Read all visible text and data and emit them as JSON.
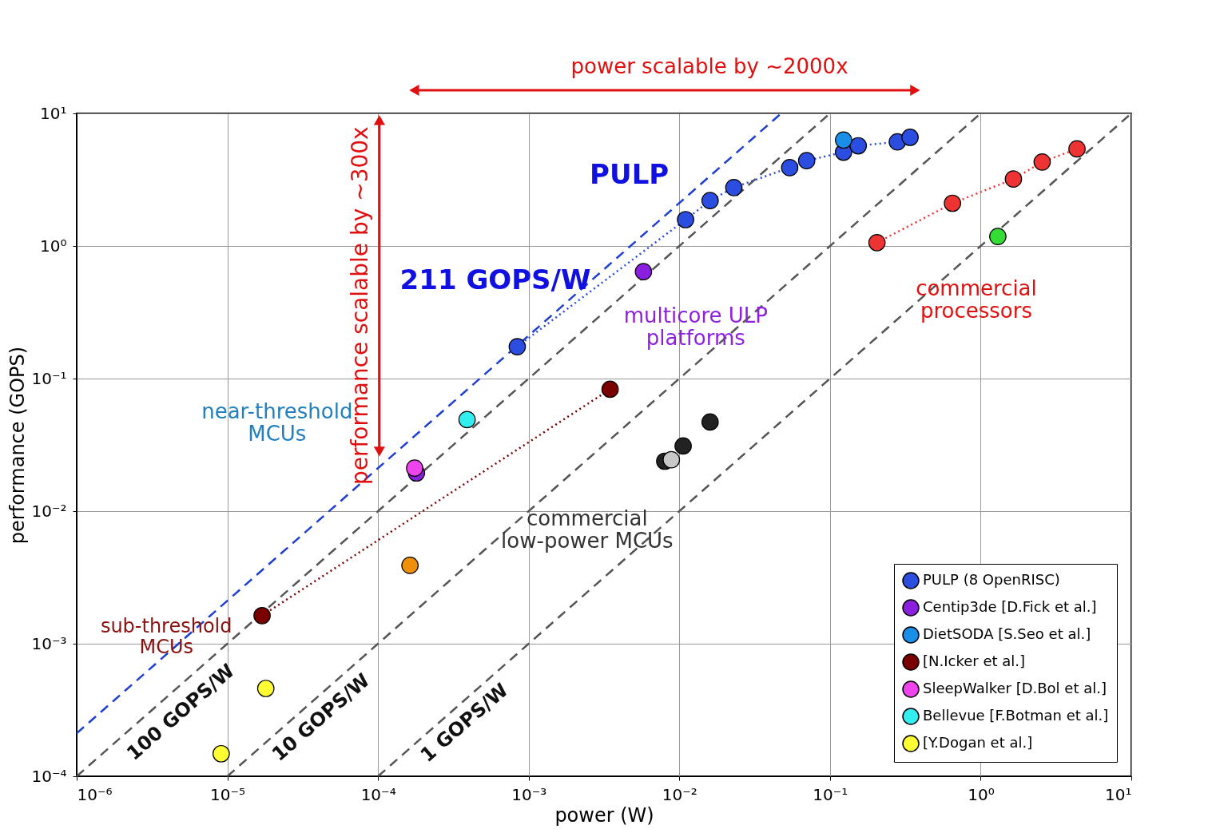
{
  "chart_data": {
    "type": "scatter",
    "xlabel": "power (W)",
    "ylabel": "performance (GOPS)",
    "xlim": [
      1e-06,
      10
    ],
    "ylim": [
      0.0001,
      10
    ],
    "xticks": [
      {
        "value": 1e-06,
        "label": "10⁻⁶"
      },
      {
        "value": 1e-05,
        "label": "10⁻⁵"
      },
      {
        "value": 0.0001,
        "label": "10⁻⁴"
      },
      {
        "value": 0.001,
        "label": "10⁻³"
      },
      {
        "value": 0.01,
        "label": "10⁻²"
      },
      {
        "value": 0.1,
        "label": "10⁻¹"
      },
      {
        "value": 1,
        "label": "10⁰"
      },
      {
        "value": 10,
        "label": "10¹"
      }
    ],
    "yticks": [
      {
        "value": 0.0001,
        "label": "10⁻⁴"
      },
      {
        "value": 0.001,
        "label": "10⁻³"
      },
      {
        "value": 0.01,
        "label": "10⁻²"
      },
      {
        "value": 0.1,
        "label": "10⁻¹"
      },
      {
        "value": 1,
        "label": "10⁰"
      },
      {
        "value": 10,
        "label": "10¹"
      }
    ],
    "log": "xy",
    "grid": true,
    "legend": "bottom right",
    "marker": "circle",
    "series": [
      {
        "type": "line",
        "color": "#1f3fd0",
        "line_style": "dashed",
        "marker": "none",
        "x": [
          1e-06,
          0.0474
        ],
        "values": [
          0.000211,
          10
        ]
      },
      {
        "type": "line",
        "color": "#555555",
        "line_style": "dashed",
        "marker": "none",
        "x": [
          1e-06,
          0.1
        ],
        "values": [
          0.0001,
          10
        ]
      },
      {
        "type": "line",
        "color": "#555555",
        "line_style": "dashed",
        "marker": "none",
        "x": [
          1e-05,
          1
        ],
        "values": [
          0.0001,
          10
        ]
      },
      {
        "type": "line",
        "color": "#555555",
        "line_style": "dashed",
        "marker": "none",
        "x": [
          0.0001,
          10
        ],
        "values": [
          0.0001,
          10
        ]
      },
      {
        "name": "PULP (8 OpenRISC)",
        "type": "line",
        "marker": "circle",
        "color": "#2b4de0",
        "line_style": "dotted",
        "x": [
          0.00084,
          0.011,
          0.016,
          0.023,
          0.054,
          0.07,
          0.123,
          0.154,
          0.28,
          0.34
        ],
        "values": [
          0.174,
          1.58,
          2.2,
          2.76,
          3.9,
          4.4,
          5.1,
          5.7,
          6.1,
          6.6
        ]
      },
      {
        "color": "#33dd33",
        "x": [
          1.3
        ],
        "values": [
          1.18
        ]
      },
      {
        "color": "#ee3333",
        "type": "line",
        "marker": "circle",
        "line_style": "dotted",
        "x": [
          0.205,
          0.65,
          1.65,
          2.56,
          4.36
        ],
        "values": [
          1.06,
          2.1,
          3.2,
          4.3,
          5.4
        ]
      },
      {
        "color": "#222222",
        "x": [
          0.008,
          0.0106,
          0.016
        ],
        "values": [
          0.0238,
          0.031,
          0.047
        ]
      },
      {
        "color": "#c8c8c8",
        "x": [
          0.00885
        ],
        "values": [
          0.0244
        ]
      },
      {
        "color": "#f0900a",
        "x": [
          0.000163
        ],
        "values": [
          0.0039
        ]
      },
      {
        "name": "Centip3de [D.Fick et al.]",
        "color": "#8a1fe0",
        "x": [
          0.00578,
          0.00018
        ],
        "values": [
          0.64,
          0.0194
        ]
      },
      {
        "name": "DietSODA [S.Seo et al.]",
        "color": "#1a8fe8",
        "x": [
          0.123
        ],
        "values": [
          6.3
        ]
      },
      {
        "name": "[N.Icker et al.]",
        "type": "line",
        "marker": "circle",
        "color": "#7a0000",
        "line_style": "dotted",
        "x": [
          1.7e-05,
          0.00347
        ],
        "values": [
          0.00163,
          0.083
        ]
      },
      {
        "name": "SleepWalker [D.Bol et al.]",
        "color": "#ee44ee",
        "x": [
          0.000175
        ],
        "values": [
          0.0211
        ]
      },
      {
        "name": "Bellevue [F.Botman et al.]",
        "color": "#33eeee",
        "x": [
          0.00039
        ],
        "values": [
          0.049
        ]
      },
      {
        "name": "[Y.Dogan et al.]",
        "color": "#ffff33",
        "x": [
          9.1e-06,
          1.8e-05
        ],
        "values": [
          0.000148,
          0.00046
        ]
      }
    ],
    "annotations": [
      "power scalable by ~2000x",
      "performance scalable by ~300x",
      "PULP",
      "211 GOPS/W",
      "multicore ULP\nplatforms",
      "commercial\nprocessors",
      "near-threshold\nMCUs",
      "commercial\nlow-power MCUs",
      "sub-threshold\nMCUs",
      "100 GOPS/W",
      "10 GOPS/W",
      "1 GOPS/W"
    ]
  }
}
